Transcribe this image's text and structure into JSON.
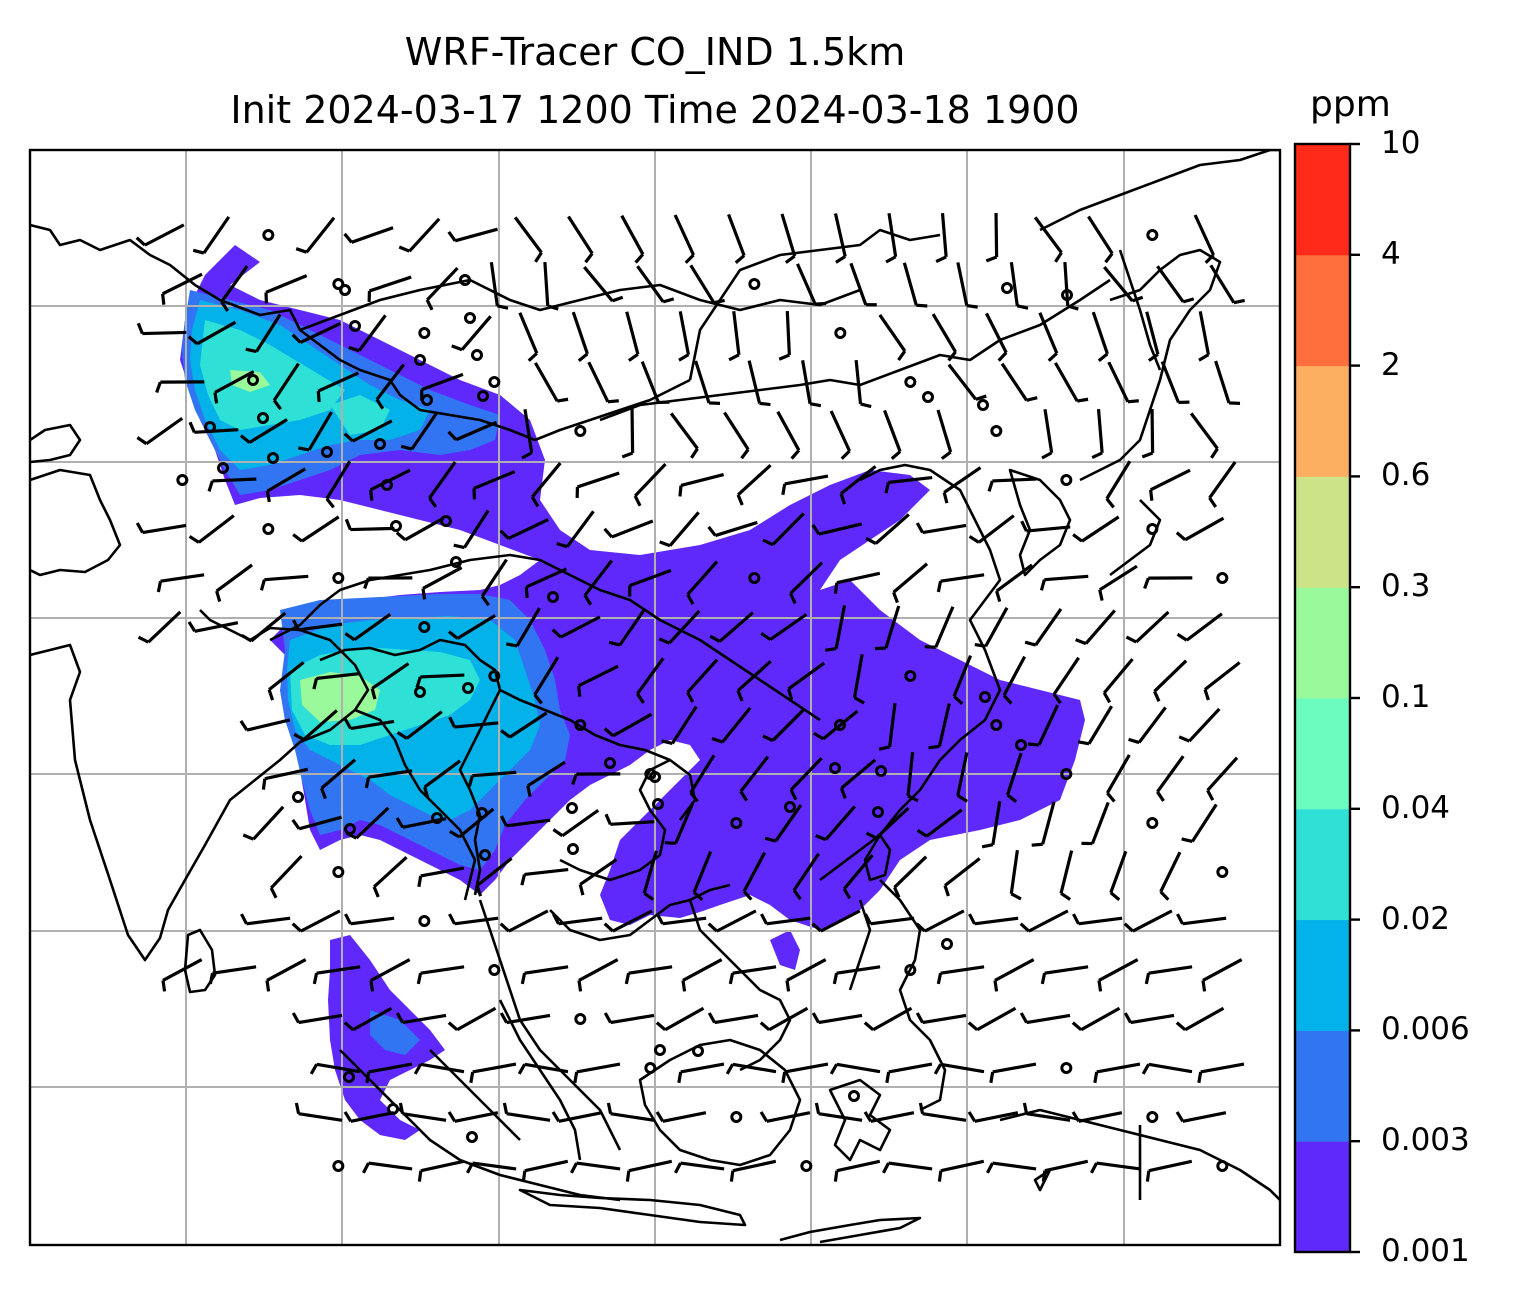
{
  "title": {
    "line1": "WRF-Tracer CO_IND 1.5km",
    "line2": "Init 2024-03-17 1200 Time 2024-03-18 1900"
  },
  "colorbar": {
    "unit": "ppm",
    "levels": [
      "0.001",
      "0.003",
      "0.006",
      "0.02",
      "0.04",
      "0.1",
      "0.3",
      "0.6",
      "2",
      "4",
      "10"
    ],
    "colors": [
      "#6029fb",
      "#3275f2",
      "#03b2e9",
      "#2ee0d6",
      "#6bfdbf",
      "#9af99a",
      "#cde388",
      "#fcae61",
      "#ff6e3c",
      "#ff2a1a"
    ]
  },
  "map": {
    "type": "filled-contour with wind barbs",
    "gridlines": true,
    "coastlines": true,
    "plume_color_bands": {
      "outer": "#6029fb",
      "mid": "#3275f2",
      "inner": "#03b2e9",
      "core": "#2ee0d6",
      "peak": "#9af99a"
    },
    "wind_symbols": [
      "wind-barb",
      "calm-circle"
    ]
  }
}
